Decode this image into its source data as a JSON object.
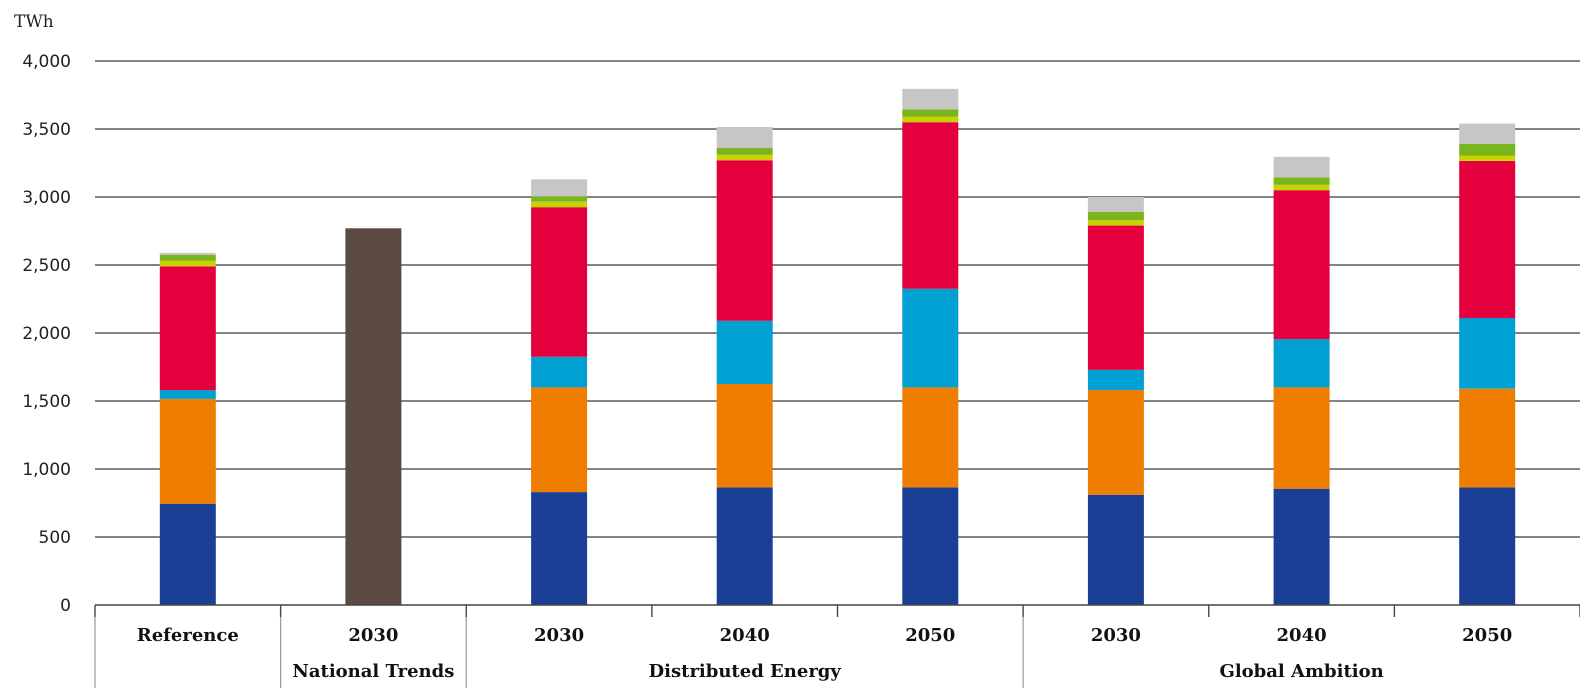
{
  "chart_data": {
    "type": "bar",
    "stacked": true,
    "y_unit": "TWh",
    "ylim": [
      0,
      4000
    ],
    "yticks": [
      "0",
      "500",
      "1,000",
      "1,500",
      "2,000",
      "2,500",
      "3,000",
      "3,500",
      "4,000"
    ],
    "ytick_values": [
      0,
      500,
      1000,
      1500,
      2000,
      2500,
      3000,
      3500,
      4000
    ],
    "grid": true,
    "categories": [
      {
        "label": "Reference",
        "group": ""
      },
      {
        "label": "2030",
        "group": "National Trends"
      },
      {
        "label": "2030",
        "group": "Distributed Energy"
      },
      {
        "label": "2040",
        "group": "Distributed Energy"
      },
      {
        "label": "2050",
        "group": "Distributed Energy"
      },
      {
        "label": "2030",
        "group": "Global Ambition"
      },
      {
        "label": "2040",
        "group": "Global Ambition"
      },
      {
        "label": "2050",
        "group": "Global Ambition"
      }
    ],
    "groups": [
      {
        "label": "",
        "span": [
          0,
          0
        ]
      },
      {
        "label": "National Trends",
        "span": [
          1,
          1
        ]
      },
      {
        "label": "Distributed Energy",
        "span": [
          2,
          4
        ]
      },
      {
        "label": "Global Ambition",
        "span": [
          5,
          7
        ]
      }
    ],
    "series": [
      {
        "color": "#1b3f94",
        "values": [
          745,
          0,
          830,
          865,
          865,
          810,
          855,
          865
        ]
      },
      {
        "color": "#ef7d00",
        "values": [
          770,
          0,
          770,
          760,
          735,
          770,
          745,
          725
        ]
      },
      {
        "color": "#00a0d2",
        "values": [
          65,
          0,
          225,
          465,
          725,
          150,
          355,
          520
        ]
      },
      {
        "color": "#e4003c",
        "values": [
          910,
          0,
          1100,
          1180,
          1225,
          1060,
          1095,
          1155
        ]
      },
      {
        "color": "#c8d400",
        "values": [
          40,
          0,
          40,
          40,
          40,
          40,
          40,
          40
        ]
      },
      {
        "color": "#7ab51d",
        "values": [
          45,
          0,
          40,
          50,
          55,
          60,
          55,
          85
        ]
      },
      {
        "color": "#c6c6c6",
        "values": [
          15,
          0,
          125,
          155,
          150,
          110,
          150,
          150
        ]
      },
      {
        "color": "#5a4a42",
        "values": [
          0,
          2770,
          0,
          0,
          0,
          0,
          0,
          0
        ]
      }
    ]
  }
}
